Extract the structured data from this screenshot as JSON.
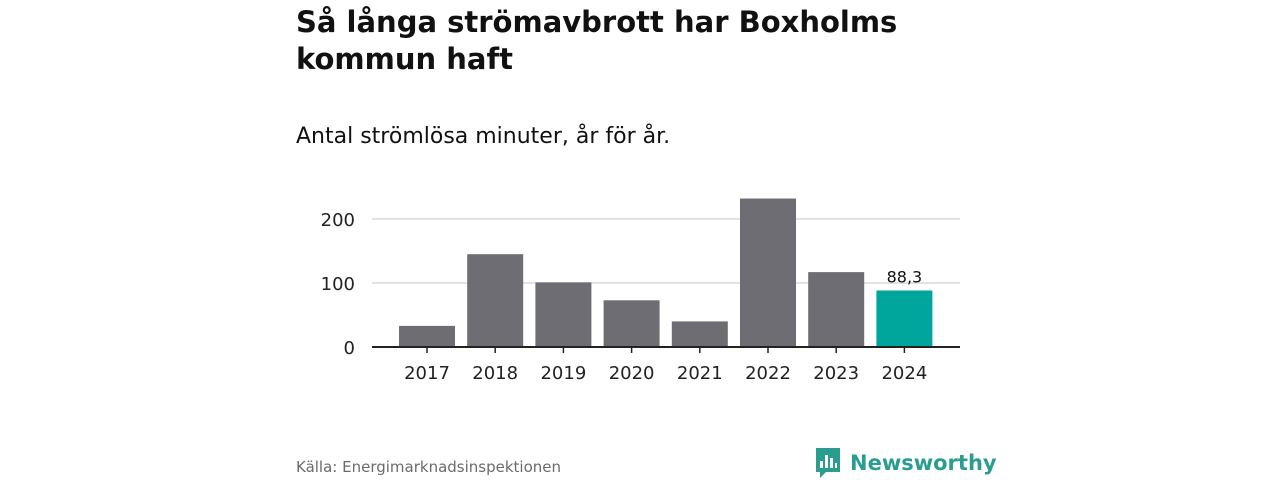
{
  "title": "Så långa strömavbrott har Boxholms kommun haft",
  "subtitle": "Antal strömlösa minuter, år för år.",
  "source": "Källa: Energimarknadsinspektionen",
  "brand": "Newsworthy",
  "colors": {
    "bar": "#6e6d73",
    "highlight": "#00a69c",
    "grid": "#d9d9d9",
    "axis": "#222222",
    "brand": "#2a9d8f"
  },
  "chart_data": {
    "type": "bar",
    "categories": [
      "2017",
      "2018",
      "2019",
      "2020",
      "2021",
      "2022",
      "2023",
      "2024"
    ],
    "values": [
      33,
      145,
      101,
      73,
      40,
      232,
      117,
      88.3
    ],
    "highlight_index": 7,
    "data_labels": [
      {
        "index": 7,
        "text": "88,3"
      }
    ],
    "yticks": [
      0,
      100,
      200
    ],
    "ylim": [
      0,
      240
    ],
    "grid": true,
    "xlabel": "",
    "ylabel": ""
  }
}
